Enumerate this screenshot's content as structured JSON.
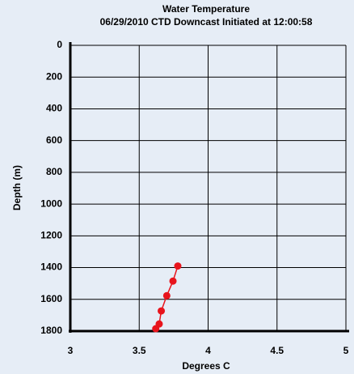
{
  "chart_data": {
    "type": "line",
    "title": "Water Temperature",
    "subtitle": "06/29/2010 CTD Downcast Initiated at 12:00:58",
    "x_label": "Degrees C",
    "y_label": "Depth (m)",
    "series": [
      {
        "name": "Temperature",
        "color": "#e8141c",
        "x": [
          3.78,
          3.745,
          3.7,
          3.66,
          3.645,
          3.62
        ],
        "values": [
          1390,
          1485,
          1577,
          1673,
          1755,
          1785
        ]
      }
    ],
    "xlim": [
      3,
      5
    ],
    "xticks": [
      3,
      3.5,
      4,
      4.5,
      5
    ],
    "ylim": [
      0,
      1800
    ],
    "yticks": [
      0,
      200,
      400,
      600,
      800,
      1000,
      1200,
      1400,
      1600,
      1800
    ],
    "y_inverted": true,
    "grid": true
  }
}
